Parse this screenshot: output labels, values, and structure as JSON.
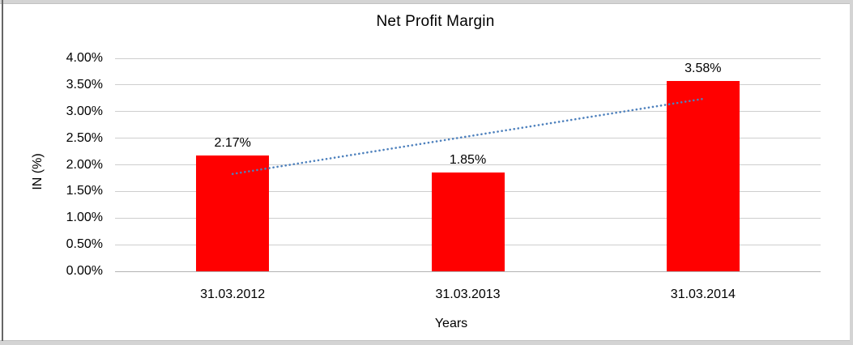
{
  "chart_data": {
    "type": "bar",
    "title": "Net Profit Margin",
    "categories": [
      "31.03.2012",
      "31.03.2013",
      "31.03.2014"
    ],
    "values": [
      2.17,
      1.85,
      3.58
    ],
    "data_labels": [
      "2.17%",
      "1.85%",
      "3.58%"
    ],
    "xlabel": "Years",
    "ylabel": "IN (%)",
    "ylim": [
      0,
      4
    ],
    "ytick_step": 0.5,
    "ytick_labels": [
      "0.00%",
      "0.50%",
      "1.00%",
      "1.50%",
      "2.00%",
      "2.50%",
      "3.00%",
      "3.50%",
      "4.00%"
    ],
    "grid": true,
    "legend_position": "none",
    "bar_color": "#ff0000",
    "gridline_color": "#cecece",
    "trendline": {
      "kind": "linear",
      "style": "dotted",
      "color": "#4e81bd",
      "fit_start_value": 1.83,
      "fit_end_value": 3.24
    }
  }
}
